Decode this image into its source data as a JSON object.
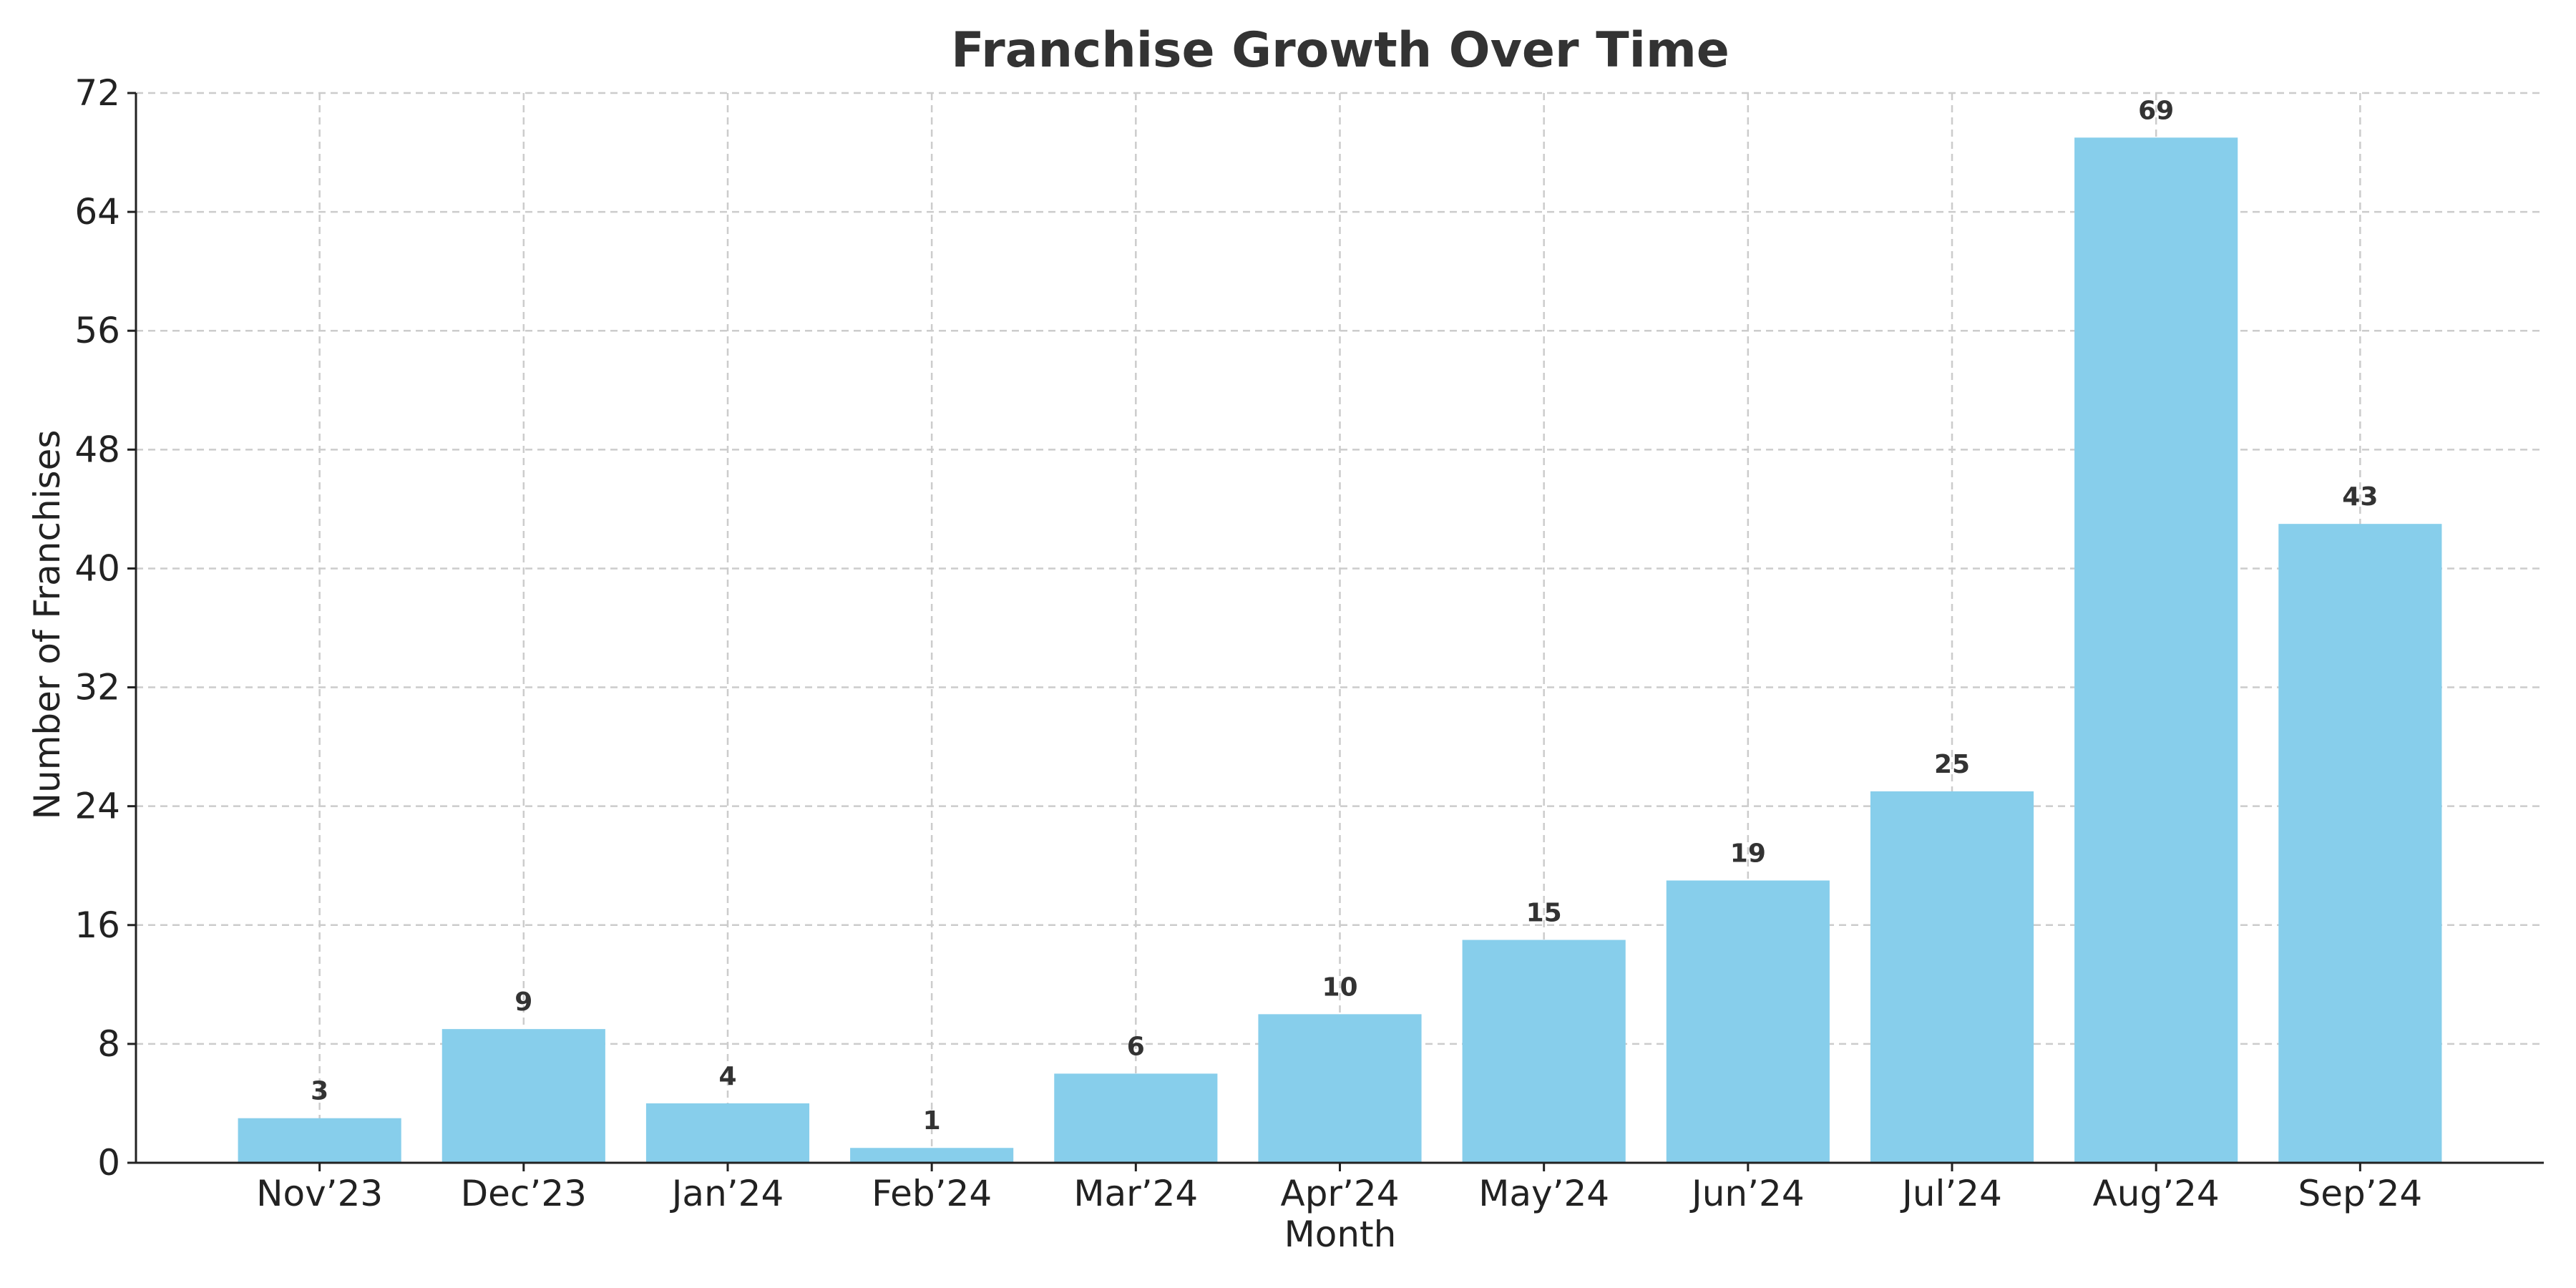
{
  "chart_data": {
    "type": "bar",
    "title": "Franchise Growth Over Time",
    "xlabel": "Month",
    "ylabel": "Number of Franchises",
    "categories": [
      "Nov’23",
      "Dec’23",
      "Jan’24",
      "Feb’24",
      "Mar’24",
      "Apr’24",
      "May’24",
      "Jun’24",
      "Jul’24",
      "Aug’24",
      "Sep’24"
    ],
    "values": [
      3,
      9,
      4,
      1,
      6,
      10,
      15,
      19,
      25,
      69,
      43
    ],
    "ylim": [
      0,
      72
    ],
    "yticks": [
      0,
      8,
      16,
      24,
      32,
      40,
      48,
      56,
      64,
      72
    ],
    "grid": true,
    "bar_color": "#87CEEB",
    "show_data_labels": true
  }
}
